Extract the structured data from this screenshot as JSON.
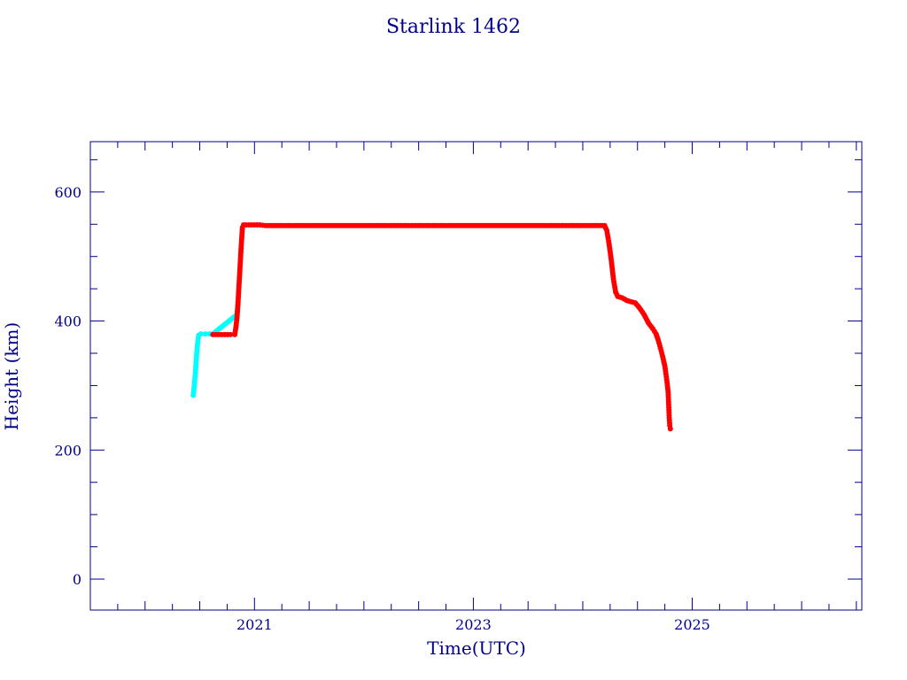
{
  "chart_data": {
    "type": "scatter",
    "title": "Starlink 1462",
    "xlabel": "Time(UTC)",
    "ylabel": "Height (km)",
    "xlim": [
      2019.5,
      2026.55
    ],
    "ylim": [
      -48,
      678
    ],
    "x_ticks": [
      2021,
      2023,
      2025
    ],
    "x_tick_labels": [
      "2021",
      "2023",
      "2025"
    ],
    "y_ticks": [
      0,
      200,
      400,
      600
    ],
    "y_tick_labels": [
      "0",
      "200",
      "400",
      "600"
    ],
    "grid": false,
    "colors": {
      "axis": "#00008b",
      "series_early": "#00ffff",
      "series_main": "#ff0000"
    },
    "series": [
      {
        "color": "#00ffff",
        "points": [
          [
            2020.44,
            285
          ],
          [
            2020.45,
            300
          ],
          [
            2020.46,
            320
          ],
          [
            2020.47,
            345
          ],
          [
            2020.48,
            365
          ],
          [
            2020.49,
            378
          ],
          [
            2020.51,
            380
          ],
          [
            2020.55,
            380
          ],
          [
            2020.59,
            380
          ],
          [
            2020.62,
            380
          ],
          [
            2020.84,
            410
          ],
          [
            2020.85,
            425
          ]
        ]
      },
      {
        "color": "#ff0000",
        "points": [
          [
            2020.62,
            379
          ],
          [
            2020.7,
            379
          ],
          [
            2020.78,
            379
          ],
          [
            2020.82,
            379
          ],
          [
            2020.83,
            390
          ],
          [
            2020.84,
            405
          ],
          [
            2020.85,
            430
          ],
          [
            2020.86,
            460
          ],
          [
            2020.87,
            490
          ],
          [
            2020.88,
            520
          ],
          [
            2020.89,
            545
          ],
          [
            2020.9,
            549
          ],
          [
            2021.0,
            549
          ],
          [
            2021.05,
            549
          ],
          [
            2021.1,
            548
          ],
          [
            2021.3,
            548
          ],
          [
            2021.6,
            548
          ],
          [
            2021.9,
            548
          ],
          [
            2022.2,
            548
          ],
          [
            2022.5,
            548
          ],
          [
            2022.8,
            548
          ],
          [
            2023.1,
            548
          ],
          [
            2023.4,
            548
          ],
          [
            2023.7,
            548
          ],
          [
            2024.0,
            548
          ],
          [
            2024.2,
            548
          ],
          [
            2024.22,
            540
          ],
          [
            2024.24,
            520
          ],
          [
            2024.26,
            495
          ],
          [
            2024.28,
            465
          ],
          [
            2024.3,
            445
          ],
          [
            2024.32,
            438
          ],
          [
            2024.36,
            436
          ],
          [
            2024.4,
            432
          ],
          [
            2024.44,
            430
          ],
          [
            2024.48,
            428
          ],
          [
            2024.52,
            420
          ],
          [
            2024.56,
            410
          ],
          [
            2024.6,
            397
          ],
          [
            2024.64,
            388
          ],
          [
            2024.67,
            380
          ],
          [
            2024.69,
            370
          ],
          [
            2024.71,
            358
          ],
          [
            2024.73,
            345
          ],
          [
            2024.75,
            330
          ],
          [
            2024.76,
            318
          ],
          [
            2024.77,
            305
          ],
          [
            2024.78,
            290
          ],
          [
            2024.785,
            270
          ],
          [
            2024.79,
            250
          ],
          [
            2024.795,
            238
          ],
          [
            2024.8,
            233
          ]
        ]
      }
    ]
  }
}
